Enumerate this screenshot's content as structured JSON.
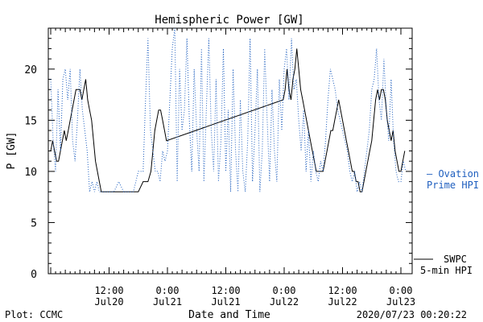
{
  "chart_data": {
    "type": "line",
    "title": "Hemispheric Power [GW]",
    "xlabel": "Date and Time",
    "ylabel": "P [GW]",
    "ylim": [
      0,
      24
    ],
    "xlim_hours": [
      0,
      72
    ],
    "y_ticks": [
      0,
      5,
      10,
      15,
      20
    ],
    "x_ticks": [
      {
        "t": 12,
        "line1": "12:00",
        "line2": "Jul20"
      },
      {
        "t": 24,
        "line1": "0:00",
        "line2": "Jul21"
      },
      {
        "t": 36,
        "line1": "12:00",
        "line2": "Jul21"
      },
      {
        "t": 48,
        "line1": "0:00",
        "line2": "Jul22"
      },
      {
        "t": 60,
        "line1": "12:00",
        "line2": "Jul22"
      },
      {
        "t": 72,
        "line1": "0:00",
        "line2": "Jul23"
      }
    ],
    "series": [
      {
        "name": "SWPC 5-min HPI",
        "style": "solid",
        "color": "#000000",
        "points": [
          [
            0,
            12
          ],
          [
            0.4,
            13
          ],
          [
            0.8,
            12
          ],
          [
            1.2,
            11
          ],
          [
            1.6,
            11
          ],
          [
            2,
            12
          ],
          [
            2.4,
            13
          ],
          [
            2.8,
            14
          ],
          [
            3.2,
            13
          ],
          [
            3.6,
            14
          ],
          [
            4,
            15
          ],
          [
            4.4,
            16
          ],
          [
            4.8,
            17
          ],
          [
            5.2,
            18
          ],
          [
            5.6,
            18
          ],
          [
            6,
            18
          ],
          [
            6.4,
            17
          ],
          [
            6.8,
            18
          ],
          [
            7.2,
            19
          ],
          [
            7.6,
            17
          ],
          [
            8,
            16
          ],
          [
            8.4,
            15
          ],
          [
            8.8,
            13
          ],
          [
            9.2,
            11
          ],
          [
            9.6,
            10
          ],
          [
            10,
            9
          ],
          [
            10.4,
            8
          ],
          [
            11,
            8
          ],
          [
            12,
            8
          ],
          [
            13,
            8
          ],
          [
            14,
            8
          ],
          [
            15,
            8
          ],
          [
            16,
            8
          ],
          [
            17,
            8
          ],
          [
            18,
            8
          ],
          [
            19,
            9
          ],
          [
            20,
            9
          ],
          [
            20.6,
            10
          ],
          [
            21,
            12
          ],
          [
            21.4,
            14
          ],
          [
            21.8,
            15
          ],
          [
            22.2,
            16
          ],
          [
            22.6,
            16
          ],
          [
            23,
            15
          ],
          [
            23.4,
            14
          ],
          [
            23.8,
            13
          ],
          [
            47.8,
            17
          ],
          [
            48.2,
            18
          ],
          [
            48.6,
            20
          ],
          [
            49,
            18
          ],
          [
            49.4,
            17
          ],
          [
            49.8,
            19
          ],
          [
            50.2,
            20
          ],
          [
            50.6,
            22
          ],
          [
            51,
            20
          ],
          [
            51.4,
            18
          ],
          [
            51.8,
            17
          ],
          [
            52.2,
            16
          ],
          [
            52.6,
            15
          ],
          [
            53,
            14
          ],
          [
            53.4,
            13
          ],
          [
            53.8,
            12
          ],
          [
            54.2,
            11
          ],
          [
            54.6,
            10
          ],
          [
            55,
            10
          ],
          [
            55.6,
            10
          ],
          [
            56,
            10
          ],
          [
            56.4,
            11
          ],
          [
            56.8,
            12
          ],
          [
            57.2,
            13
          ],
          [
            57.6,
            14
          ],
          [
            58,
            14
          ],
          [
            58.4,
            15
          ],
          [
            58.8,
            16
          ],
          [
            59.2,
            17
          ],
          [
            59.6,
            16
          ],
          [
            60,
            15
          ],
          [
            60.4,
            14
          ],
          [
            60.8,
            13
          ],
          [
            61.2,
            12
          ],
          [
            61.6,
            11
          ],
          [
            62,
            10
          ],
          [
            62.4,
            10
          ],
          [
            62.8,
            9
          ],
          [
            63.2,
            9
          ],
          [
            63.6,
            8
          ],
          [
            64,
            8
          ],
          [
            64.4,
            9
          ],
          [
            64.8,
            10
          ],
          [
            65.2,
            11
          ],
          [
            65.6,
            12
          ],
          [
            66,
            13
          ],
          [
            66.4,
            15
          ],
          [
            66.8,
            17
          ],
          [
            67.2,
            18
          ],
          [
            67.6,
            17
          ],
          [
            68,
            18
          ],
          [
            68.4,
            18
          ],
          [
            68.8,
            17
          ],
          [
            69.2,
            15
          ],
          [
            69.6,
            14
          ],
          [
            70,
            13
          ],
          [
            70.4,
            14
          ],
          [
            70.8,
            12
          ],
          [
            71.2,
            11
          ],
          [
            71.6,
            10
          ],
          [
            72,
            10
          ],
          [
            72.4,
            11
          ],
          [
            72.8,
            12
          ]
        ]
      },
      {
        "name": "Ovation Prime HPI",
        "style": "dotted",
        "color": "#1f5fbf",
        "points": [
          [
            0,
            19
          ],
          [
            0.5,
            13
          ],
          [
            1,
            10
          ],
          [
            1.5,
            18
          ],
          [
            2,
            12
          ],
          [
            2.5,
            19
          ],
          [
            3,
            20
          ],
          [
            3.5,
            17
          ],
          [
            4,
            20
          ],
          [
            4.5,
            13
          ],
          [
            5,
            11
          ],
          [
            5.5,
            15
          ],
          [
            6,
            20
          ],
          [
            6.5,
            16
          ],
          [
            7,
            14
          ],
          [
            7.5,
            12
          ],
          [
            8,
            8
          ],
          [
            8.5,
            9
          ],
          [
            9,
            8
          ],
          [
            9.5,
            9
          ],
          [
            10,
            8
          ],
          [
            10.5,
            8
          ],
          [
            11,
            8
          ],
          [
            12,
            8
          ],
          [
            13,
            8
          ],
          [
            14,
            9
          ],
          [
            15,
            8
          ],
          [
            16,
            8
          ],
          [
            17,
            8
          ],
          [
            18,
            10
          ],
          [
            19,
            10
          ],
          [
            19.5,
            17
          ],
          [
            20,
            23
          ],
          [
            20.5,
            14
          ],
          [
            21,
            12
          ],
          [
            21.5,
            10
          ],
          [
            22,
            10
          ],
          [
            22.5,
            9
          ],
          [
            23,
            12
          ],
          [
            23.5,
            11
          ],
          [
            24,
            12
          ],
          [
            24.5,
            17
          ],
          [
            25,
            22
          ],
          [
            25.5,
            24
          ],
          [
            26,
            9
          ],
          [
            26.5,
            20
          ],
          [
            27,
            14
          ],
          [
            27.5,
            16
          ],
          [
            28,
            23
          ],
          [
            28.5,
            15
          ],
          [
            29,
            10
          ],
          [
            29.5,
            20
          ],
          [
            30,
            14
          ],
          [
            30.5,
            10
          ],
          [
            31,
            22
          ],
          [
            31.5,
            9
          ],
          [
            32,
            16
          ],
          [
            32.5,
            23
          ],
          [
            33,
            14
          ],
          [
            33.5,
            10
          ],
          [
            34,
            19
          ],
          [
            34.5,
            9
          ],
          [
            35,
            13
          ],
          [
            35.5,
            22
          ],
          [
            36,
            10
          ],
          [
            36.5,
            16
          ],
          [
            37,
            8
          ],
          [
            37.5,
            20
          ],
          [
            38,
            12
          ],
          [
            38.5,
            8
          ],
          [
            39,
            17
          ],
          [
            39.5,
            10
          ],
          [
            40,
            8
          ],
          [
            40.5,
            13
          ],
          [
            41,
            23
          ],
          [
            41.5,
            9
          ],
          [
            42,
            14
          ],
          [
            42.5,
            20
          ],
          [
            43,
            8
          ],
          [
            43.5,
            12
          ],
          [
            44,
            22
          ],
          [
            44.5,
            15
          ],
          [
            45,
            9
          ],
          [
            45.5,
            18
          ],
          [
            46,
            12
          ],
          [
            46.5,
            9
          ],
          [
            47,
            19
          ],
          [
            47.5,
            14
          ],
          [
            48,
            20
          ],
          [
            48.5,
            22
          ],
          [
            49,
            17
          ],
          [
            49.5,
            23
          ],
          [
            50,
            18
          ],
          [
            50.5,
            19
          ],
          [
            51,
            15
          ],
          [
            51.5,
            12
          ],
          [
            52,
            16
          ],
          [
            52.5,
            10
          ],
          [
            53,
            14
          ],
          [
            53.5,
            9
          ],
          [
            54,
            12
          ],
          [
            54.5,
            10
          ],
          [
            55,
            9
          ],
          [
            55.5,
            11
          ],
          [
            56,
            10
          ],
          [
            56.5,
            13
          ],
          [
            57,
            17
          ],
          [
            57.5,
            20
          ],
          [
            58,
            19
          ],
          [
            58.5,
            18
          ],
          [
            59,
            16
          ],
          [
            59.5,
            15
          ],
          [
            60,
            14
          ],
          [
            60.5,
            13
          ],
          [
            61,
            12
          ],
          [
            61.5,
            10
          ],
          [
            62,
            9
          ],
          [
            62.5,
            10
          ],
          [
            63,
            8
          ],
          [
            63.5,
            9
          ],
          [
            64,
            8
          ],
          [
            64.5,
            10
          ],
          [
            65,
            12
          ],
          [
            65.5,
            14
          ],
          [
            66,
            18
          ],
          [
            66.5,
            19
          ],
          [
            67,
            22
          ],
          [
            67.5,
            17
          ],
          [
            68,
            15
          ],
          [
            68.5,
            21
          ],
          [
            69,
            16
          ],
          [
            69.5,
            13
          ],
          [
            70,
            19
          ],
          [
            70.5,
            13
          ],
          [
            71,
            10
          ],
          [
            71.5,
            9
          ],
          [
            72,
            9
          ],
          [
            72.5,
            11
          ],
          [
            73,
            10
          ]
        ]
      }
    ],
    "legend": [
      {
        "line1": "— Ovation",
        "line2": "Prime HPI",
        "color": "#1f5fbf"
      },
      {
        "line1": "SWPC",
        "line2": "5-min HPI",
        "color": "#000000"
      }
    ]
  },
  "footer": {
    "plot_credit": "Plot: CCMC",
    "timestamp": "2020/07/23 00:20:22"
  }
}
